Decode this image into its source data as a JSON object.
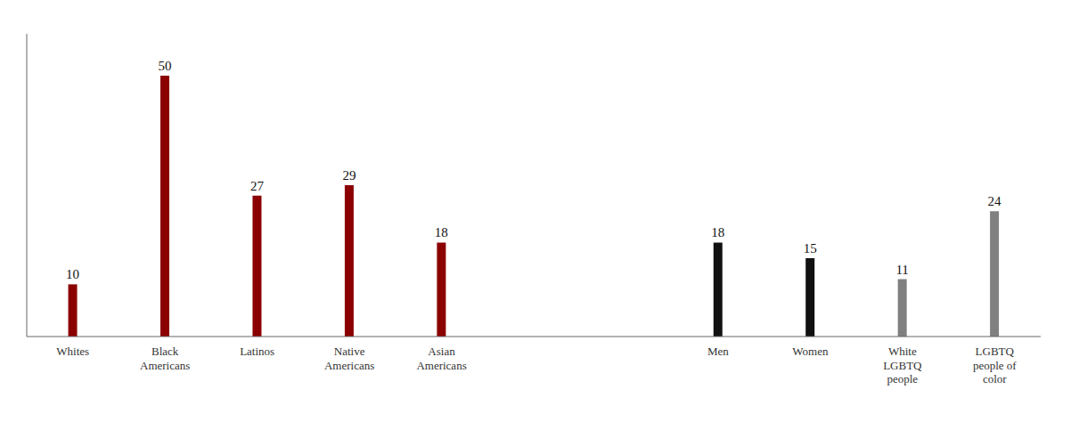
{
  "chart_data": {
    "type": "bar",
    "categories": [
      "Whites",
      "Black\nAmericans",
      "Latinos",
      "Native\nAmericans",
      "Asian\nAmericans",
      null,
      null,
      "Men",
      "Women",
      "White\nLGBTQ\npeople",
      "LGBTQ\npeople of\ncolor"
    ],
    "values": [
      10,
      50,
      27,
      29,
      18,
      null,
      null,
      18,
      15,
      11,
      24
    ],
    "colors": [
      "#8B0000",
      "#8B0000",
      "#8B0000",
      "#8B0000",
      "#8B0000",
      "#ffffff",
      "#ffffff",
      "#111111",
      "#111111",
      "#808080",
      "#808080"
    ],
    "ylim": [
      0,
      58
    ],
    "data_labels": true,
    "tick_labels": "x"
  }
}
